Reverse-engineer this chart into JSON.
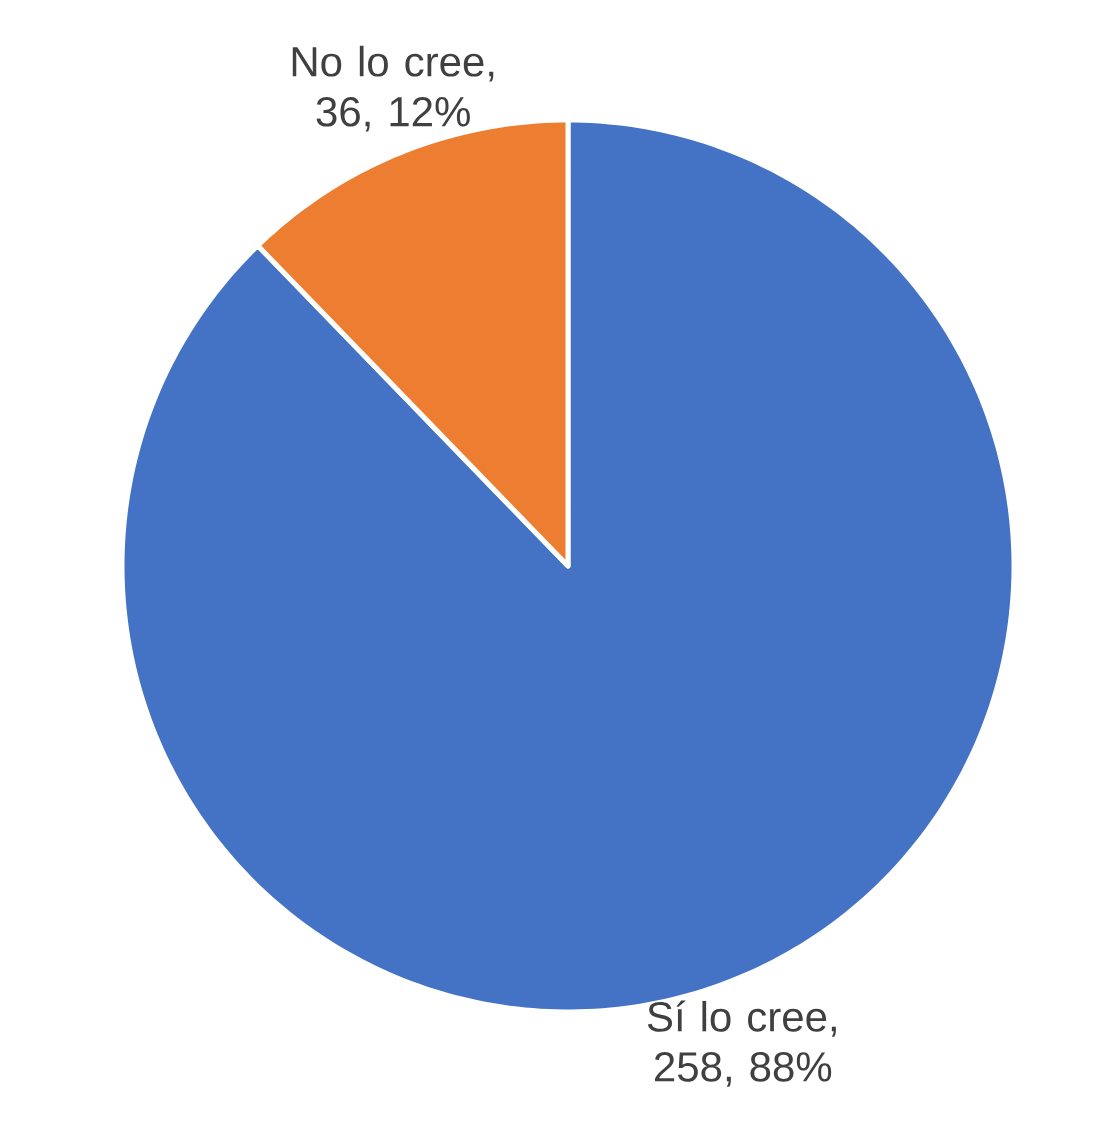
{
  "chart_data": {
    "type": "pie",
    "categories": [
      null,
      null
    ],
    "values": [
      258,
      36
    ],
    "value_labels": [
      "Sí lo cree, 258, 88%",
      "No lo cree, 36, 12%"
    ],
    "colors": [
      "#4472c4",
      "#ed7d31"
    ]
  }
}
